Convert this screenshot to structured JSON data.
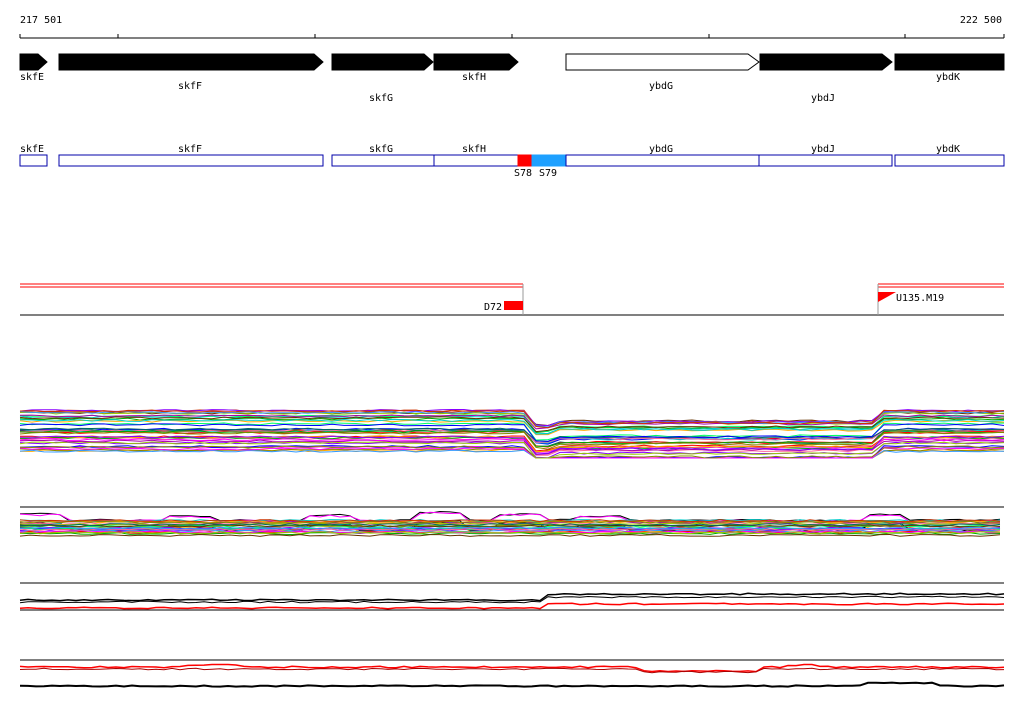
{
  "coordinates": {
    "start_label": "217 501",
    "end_label": "222 500"
  },
  "genes": [
    {
      "name": "skfE",
      "strand": "+",
      "filled": true
    },
    {
      "name": "skfF",
      "strand": "+",
      "filled": true
    },
    {
      "name": "skfG",
      "strand": "+",
      "filled": true
    },
    {
      "name": "skfH",
      "strand": "+",
      "filled": true
    },
    {
      "name": "ybdG",
      "strand": "+",
      "filled": false
    },
    {
      "name": "ybdJ",
      "strand": "+",
      "filled": true
    },
    {
      "name": "ybdK",
      "strand": "+",
      "filled": true
    }
  ],
  "segments": [
    {
      "name": "skfE"
    },
    {
      "name": "skfF"
    },
    {
      "name": "skfG"
    },
    {
      "name": "skfH"
    },
    {
      "name": "ybdG"
    },
    {
      "name": "ybdJ"
    },
    {
      "name": "ybdK"
    }
  ],
  "regions": [
    {
      "name": "S78",
      "color": "#ff0000"
    },
    {
      "name": "S79",
      "color": "#1ea0ff"
    }
  ],
  "markers": [
    {
      "name": "D72",
      "color": "#ff0000"
    },
    {
      "name": "U135.M19",
      "color": "#ff0000"
    }
  ],
  "colors": {
    "track_line": "#000000",
    "highlight": "#ff0000",
    "segment_border": "#0000aa"
  }
}
